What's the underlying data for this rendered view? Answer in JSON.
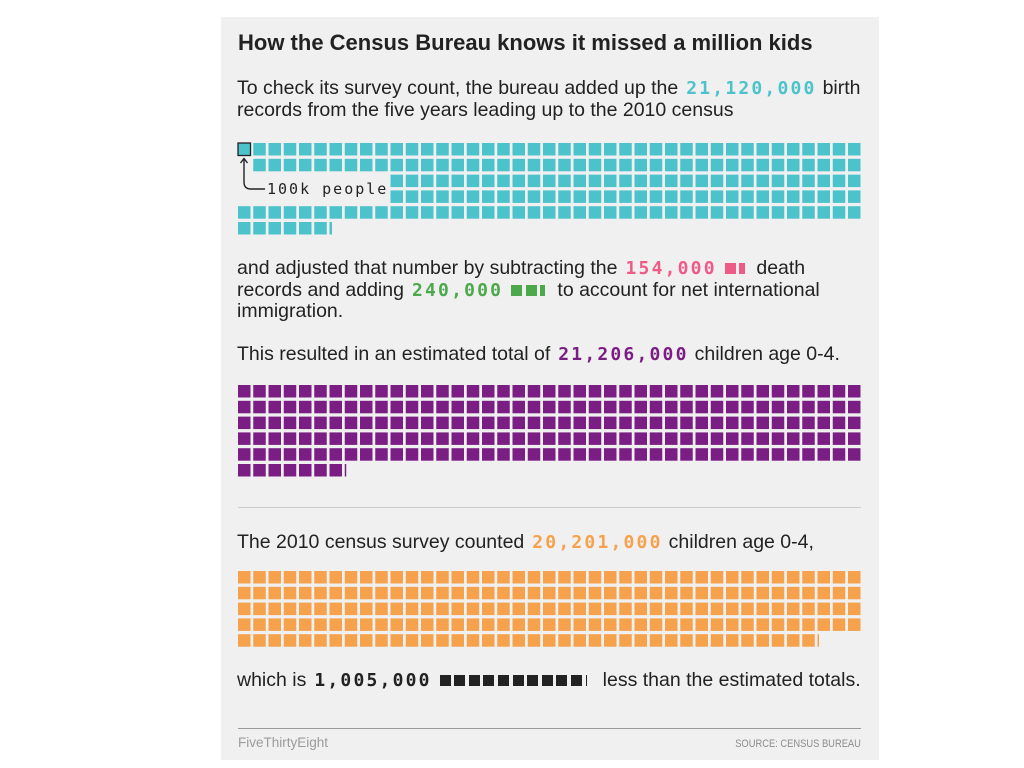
{
  "chart_data": {
    "type": "bar",
    "title": "How the Census Bureau knows it missed a million kids",
    "unit_label": "100k people",
    "unit_value": 100000,
    "values": [
      21120000,
      154000,
      240000,
      21206000,
      20201000,
      1005000
    ],
    "colors": [
      "#4cc3cb",
      "#ee5b87",
      "#4ba84b",
      "#7b1e84",
      "#f6a14c",
      "#222222"
    ]
  },
  "intro": {
    "line1_before": "To check its survey count, the bureau added up the",
    "value": "21,120,000",
    "line1_after": "birth",
    "line2": "records from the five years leading up to the 2010 census"
  },
  "adjust": {
    "line1_before": "and adjusted that number by subtracting the",
    "deaths_value": "154,000",
    "line1_after": "death",
    "line2_before": "records and adding",
    "immigration_value": "240,000",
    "line2_after": "to account for net international",
    "line3": "immigration."
  },
  "estimate": {
    "before": "This resulted in an estimated total of",
    "value": "21,206,000",
    "after": "children age 0-4."
  },
  "census": {
    "before": "The 2010 census survey counted",
    "value": "20,201,000",
    "after": "children age 0-4,"
  },
  "difference": {
    "before": "which is",
    "value": "1,005,000",
    "after": "less than the estimated totals."
  },
  "footer": {
    "brand": "FiveThirtyEight",
    "source": "SOURCE: CENSUS BUREAU"
  }
}
